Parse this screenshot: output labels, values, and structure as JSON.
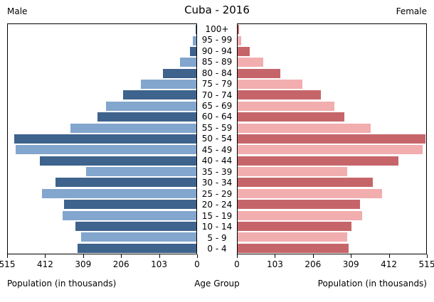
{
  "header": {
    "title": "Cuba - 2016",
    "left_label": "Male",
    "right_label": "Female"
  },
  "axis": {
    "x_max": 515,
    "ticks": [
      0,
      103,
      206,
      309,
      412,
      515
    ],
    "xlabel_left": "Population (in thousands)",
    "xlabel_center": "Age Group",
    "xlabel_right": "Population (in thousands)"
  },
  "colors": {
    "male_dark": "#3E638C",
    "male_light": "#82A6CD",
    "female_dark": "#C66569",
    "female_light": "#F2ADAF",
    "axis_line": "#000000"
  },
  "chart_data": {
    "type": "bar",
    "subtype": "population-pyramid",
    "title": "Cuba - 2016",
    "unit": "thousands",
    "xlim": [
      0,
      515
    ],
    "grid": false,
    "categories_top_to_bottom": [
      "100+",
      "95 - 99",
      "90 - 94",
      "85 - 89",
      "80 - 84",
      "75 - 79",
      "70 - 74",
      "65 - 69",
      "60 - 64",
      "55 - 59",
      "50 - 54",
      "45 - 49",
      "40 - 44",
      "35 - 39",
      "30 - 34",
      "25 - 29",
      "20 - 24",
      "15 - 19",
      "10 - 14",
      "5 - 9",
      "0 - 4"
    ],
    "series": [
      {
        "name": "Male",
        "side": "left",
        "values": [
          2,
          9,
          18,
          44,
          92,
          151,
          201,
          246,
          271,
          344,
          498,
          494,
          427,
          301,
          384,
          421,
          361,
          365,
          330,
          315,
          324
        ]
      },
      {
        "name": "Female",
        "side": "right",
        "values": [
          3,
          10,
          33,
          69,
          117,
          177,
          227,
          265,
          292,
          363,
          514,
          505,
          439,
          299,
          369,
          394,
          335,
          341,
          310,
          300,
          304
        ]
      }
    ]
  }
}
